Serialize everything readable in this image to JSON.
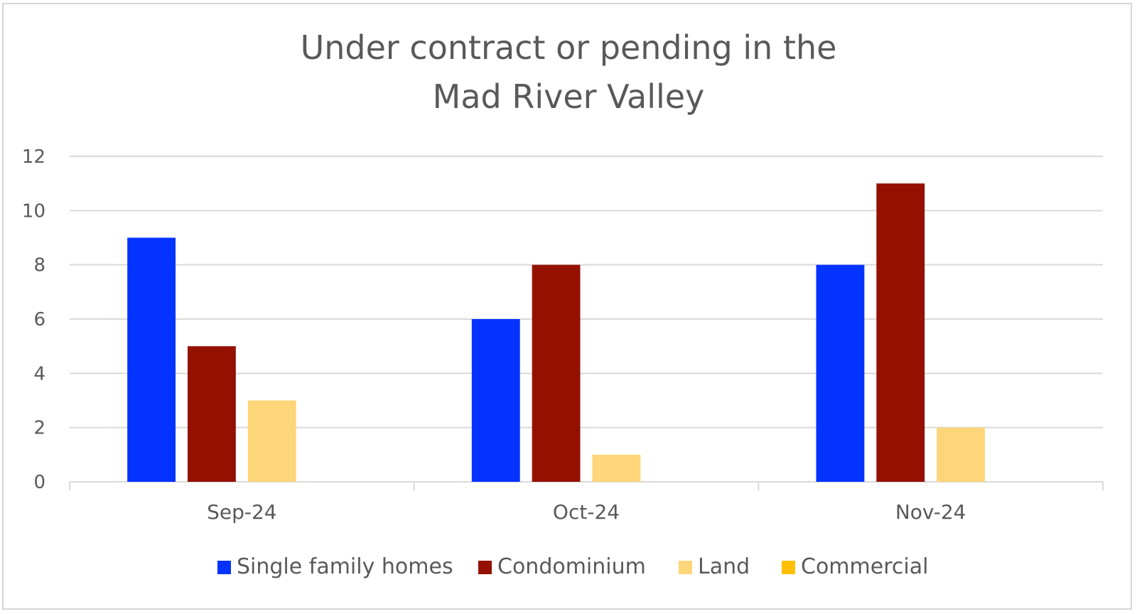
{
  "chart_data": {
    "type": "bar",
    "title_lines": [
      "Under contract or pending in the",
      "Mad River Valley"
    ],
    "categories": [
      "Sep-24",
      "Oct-24",
      "Nov-24"
    ],
    "series": [
      {
        "name": "Single family homes",
        "color": "#0433ff",
        "values": [
          9,
          6,
          8
        ]
      },
      {
        "name": "Condominium",
        "color": "#941100",
        "values": [
          5,
          8,
          11
        ]
      },
      {
        "name": "Land",
        "color": "#ffd579",
        "values": [
          3,
          1,
          2
        ]
      },
      {
        "name": "Commercial",
        "color": "#ffc000",
        "values": [
          0,
          0,
          0
        ]
      }
    ],
    "ylim": [
      0,
      12
    ],
    "yticks": [
      "0",
      "2",
      "4",
      "6",
      "8",
      "10",
      "12"
    ],
    "grid": true,
    "legend_position": "bottom",
    "xlabel": "",
    "ylabel": ""
  }
}
